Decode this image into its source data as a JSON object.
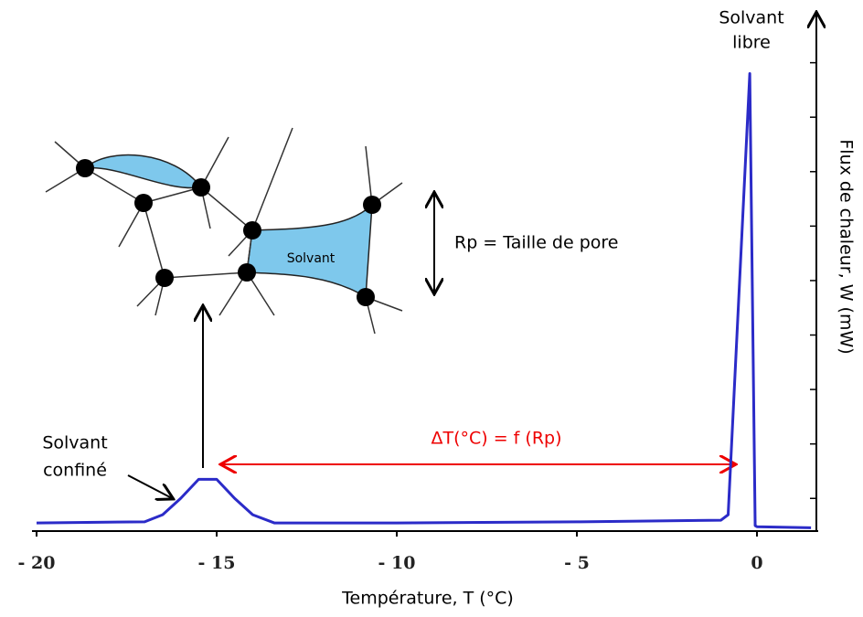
{
  "chart_data": {
    "type": "line",
    "x_label": "Température, T (°C)",
    "y_label": "Flux de chaleur, W (mW)",
    "xlim": [
      -20,
      1.7
    ],
    "xticks": [
      {
        "value": -20,
        "label": "- 20"
      },
      {
        "value": -15,
        "label": "- 15"
      },
      {
        "value": -10,
        "label": "- 10"
      },
      {
        "value": -5,
        "label": "- 5"
      },
      0
    ],
    "ylim": [
      0,
      9.5
    ],
    "yticks": [
      0.6,
      1.6,
      2.6,
      3.6,
      4.6,
      5.6,
      6.6,
      7.6,
      8.6
    ],
    "color": "#2b2bc8",
    "x": [
      -20,
      -17,
      -16.5,
      -16,
      -15.5,
      -15,
      -14.5,
      -14,
      -13.4,
      -10,
      -5,
      -1,
      -0.8,
      -0.2,
      -0.05,
      0,
      1.5
    ],
    "values": [
      0.15,
      0.17,
      0.3,
      0.6,
      0.95,
      0.95,
      0.6,
      0.3,
      0.15,
      0.15,
      0.17,
      0.2,
      0.3,
      8.4,
      0.1,
      0.08,
      0.06
    ],
    "annotations": {
      "free": [
        "Solvant",
        "libre"
      ],
      "confined": [
        "Solvant",
        "confiné"
      ],
      "delta": "ΔT(°C) = f (Rp)",
      "pore": "Rp = Taille de pore",
      "solvent": "Solvant"
    }
  }
}
